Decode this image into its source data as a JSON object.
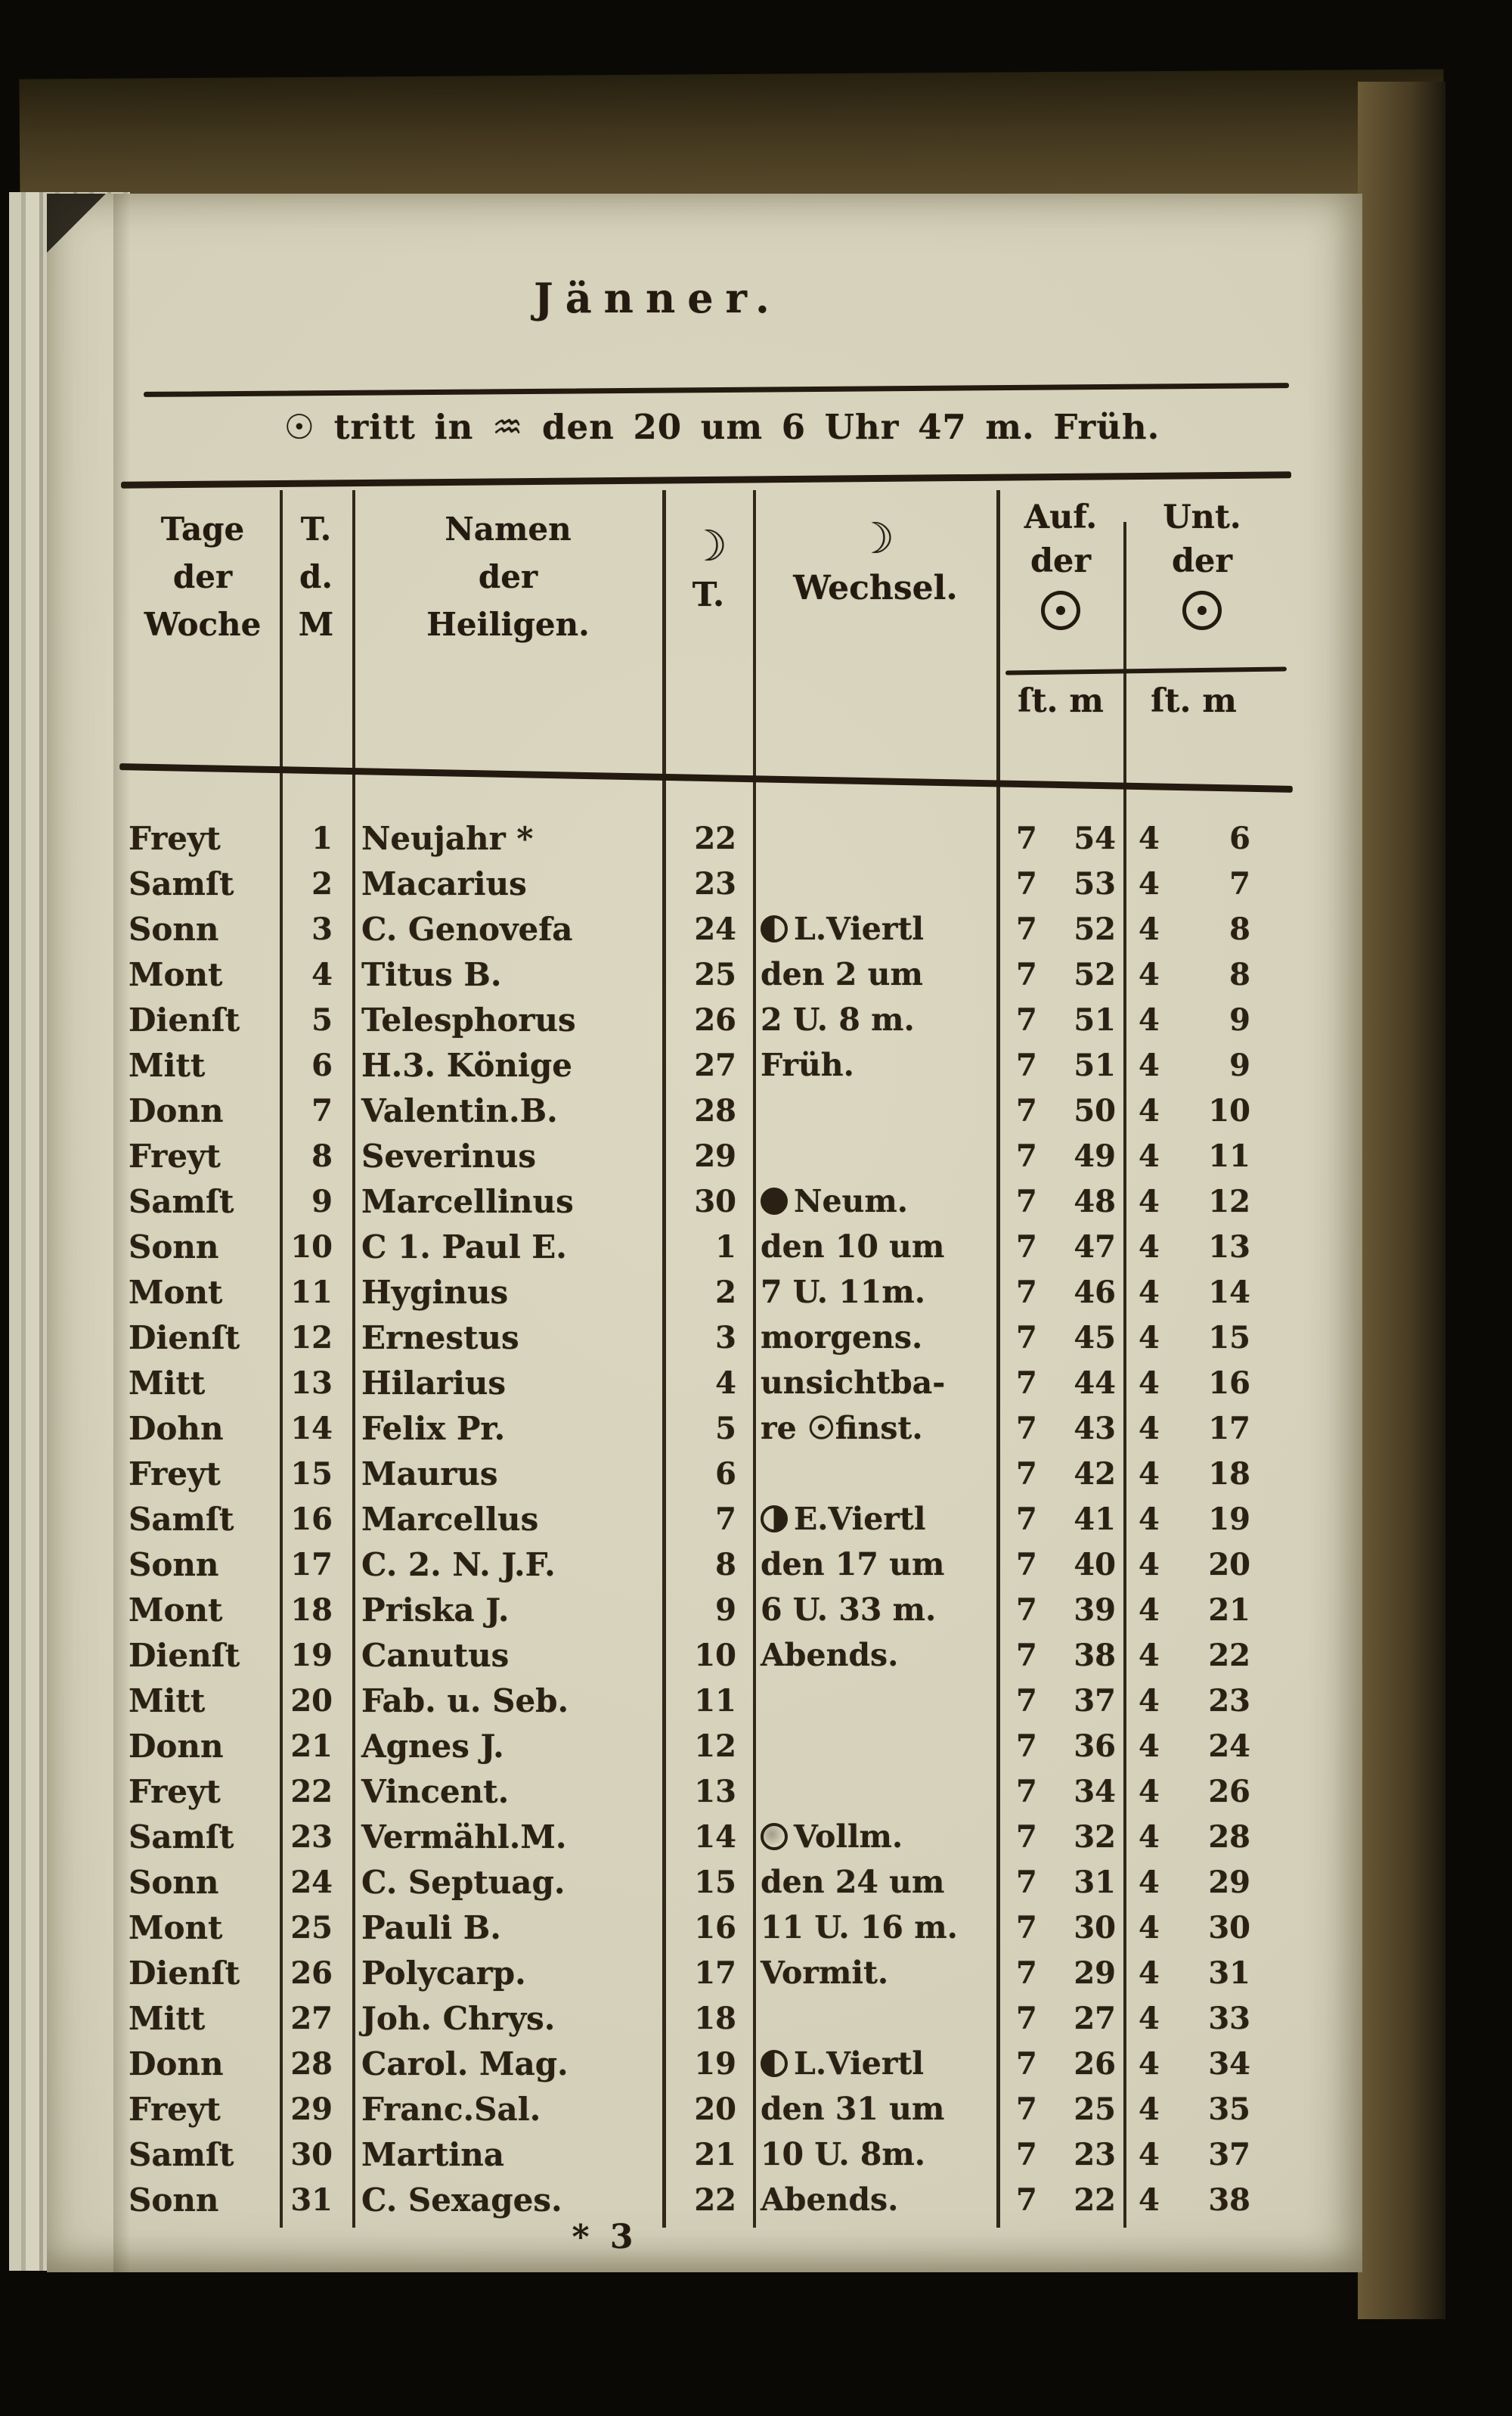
{
  "page": {
    "title": "Jänner.",
    "subtitle": {
      "sun_symbol": "☉",
      "text1": "tritt in",
      "aquarius_symbol": "♒",
      "text2": "den 20 um 6 Uhr 47 m. Früh."
    },
    "footer_mark": "* 3"
  },
  "colors": {
    "paper": "#d7d3bd",
    "ink": "#2a2013",
    "cover": "#55482c",
    "background": "#0b0906"
  },
  "icons": {
    "moon_crescent": "☽",
    "sun": "☉",
    "aquarius": "♒",
    "new_moon": "new",
    "first_quarter": "first",
    "last_quarter": "last",
    "full_moon": "full"
  },
  "table": {
    "headers": {
      "day": [
        "Tage",
        "der",
        "Woche"
      ],
      "date": [
        "T.",
        "d.",
        "M"
      ],
      "saint": [
        "Namen",
        "der",
        "Heiligen."
      ],
      "moon_day": {
        "symbol": "☽",
        "label": "T."
      },
      "wechsel": {
        "symbol": "☽",
        "label": "Wechsel."
      },
      "rise": {
        "line1": "Auf.",
        "line2": "der"
      },
      "set": {
        "line1": "Unt.",
        "line2": "der"
      },
      "units": {
        "rise": "ſt. m",
        "set": "ſt. m"
      }
    },
    "rows": [
      {
        "day": "Freyt",
        "date": "1",
        "saint": "Neujahr *",
        "moon_day": "22",
        "moon": "",
        "wechsel": "",
        "rise": [
          "7",
          "54"
        ],
        "set": [
          "4",
          "6"
        ]
      },
      {
        "day": "Samſt",
        "date": "2",
        "saint": "Macarius",
        "moon_day": "23",
        "moon": "",
        "wechsel": "",
        "rise": [
          "7",
          "53"
        ],
        "set": [
          "4",
          "7"
        ]
      },
      {
        "day": "Sonn",
        "date": "3",
        "saint": "C. Genovefa",
        "moon_day": "24",
        "moon": "last",
        "wechsel": "L.Viertl",
        "rise": [
          "7",
          "52"
        ],
        "set": [
          "4",
          "8"
        ]
      },
      {
        "day": "Mont",
        "date": "4",
        "saint": "Titus B.",
        "moon_day": "25",
        "moon": "",
        "wechsel": "den 2 um",
        "rise": [
          "7",
          "52"
        ],
        "set": [
          "4",
          "8"
        ]
      },
      {
        "day": "Dienſt",
        "date": "5",
        "saint": "Telesphorus",
        "moon_day": "26",
        "moon": "",
        "wechsel": "2 U. 8 m.",
        "rise": [
          "7",
          "51"
        ],
        "set": [
          "4",
          "9"
        ]
      },
      {
        "day": "Mitt",
        "date": "6",
        "saint": "H.3. Könige",
        "moon_day": "27",
        "moon": "",
        "wechsel": "Früh.",
        "rise": [
          "7",
          "51"
        ],
        "set": [
          "4",
          "9"
        ]
      },
      {
        "day": "Donn",
        "date": "7",
        "saint": "Valentin.B.",
        "moon_day": "28",
        "moon": "",
        "wechsel": "",
        "rise": [
          "7",
          "50"
        ],
        "set": [
          "4",
          "10"
        ]
      },
      {
        "day": "Freyt",
        "date": "8",
        "saint": "Severinus",
        "moon_day": "29",
        "moon": "",
        "wechsel": "",
        "rise": [
          "7",
          "49"
        ],
        "set": [
          "4",
          "11"
        ]
      },
      {
        "day": "Samſt",
        "date": "9",
        "saint": "Marcellinus",
        "moon_day": "30",
        "moon": "new",
        "wechsel": "Neum.",
        "rise": [
          "7",
          "48"
        ],
        "set": [
          "4",
          "12"
        ]
      },
      {
        "day": "Sonn",
        "date": "10",
        "saint": "C 1. Paul E.",
        "moon_day": "1",
        "moon": "",
        "wechsel": "den 10 um",
        "rise": [
          "7",
          "47"
        ],
        "set": [
          "4",
          "13"
        ]
      },
      {
        "day": "Mont",
        "date": "11",
        "saint": "Hyginus",
        "moon_day": "2",
        "moon": "",
        "wechsel": "7 U. 11m.",
        "rise": [
          "7",
          "46"
        ],
        "set": [
          "4",
          "14"
        ]
      },
      {
        "day": "Dienſt",
        "date": "12",
        "saint": "Ernestus",
        "moon_day": "3",
        "moon": "",
        "wechsel": "morgens.",
        "rise": [
          "7",
          "45"
        ],
        "set": [
          "4",
          "15"
        ]
      },
      {
        "day": "Mitt",
        "date": "13",
        "saint": "Hilarius",
        "moon_day": "4",
        "moon": "",
        "wechsel": "unsichtba-",
        "rise": [
          "7",
          "44"
        ],
        "set": [
          "4",
          "16"
        ]
      },
      {
        "day": "Dohn",
        "date": "14",
        "saint": "Felix Pr.",
        "moon_day": "5",
        "moon": "",
        "wechsel": "re ☉finst.",
        "rise": [
          "7",
          "43"
        ],
        "set": [
          "4",
          "17"
        ]
      },
      {
        "day": "Freyt",
        "date": "15",
        "saint": "Maurus",
        "moon_day": "6",
        "moon": "",
        "wechsel": "",
        "rise": [
          "7",
          "42"
        ],
        "set": [
          "4",
          "18"
        ]
      },
      {
        "day": "Samſt",
        "date": "16",
        "saint": "Marcellus",
        "moon_day": "7",
        "moon": "first",
        "wechsel": "E.Viertl",
        "rise": [
          "7",
          "41"
        ],
        "set": [
          "4",
          "19"
        ]
      },
      {
        "day": "Sonn",
        "date": "17",
        "saint": "C. 2. N. J.F.",
        "moon_day": "8",
        "moon": "",
        "wechsel": "den 17 um",
        "rise": [
          "7",
          "40"
        ],
        "set": [
          "4",
          "20"
        ]
      },
      {
        "day": "Mont",
        "date": "18",
        "saint": "Priska J.",
        "moon_day": "9",
        "moon": "",
        "wechsel": "6 U. 33 m.",
        "rise": [
          "7",
          "39"
        ],
        "set": [
          "4",
          "21"
        ]
      },
      {
        "day": "Dienſt",
        "date": "19",
        "saint": "Canutus",
        "moon_day": "10",
        "moon": "",
        "wechsel": "Abends.",
        "rise": [
          "7",
          "38"
        ],
        "set": [
          "4",
          "22"
        ]
      },
      {
        "day": "Mitt",
        "date": "20",
        "saint": "Fab. u. Seb.",
        "moon_day": "11",
        "moon": "",
        "wechsel": "",
        "rise": [
          "7",
          "37"
        ],
        "set": [
          "4",
          "23"
        ]
      },
      {
        "day": "Donn",
        "date": "21",
        "saint": "Agnes J.",
        "moon_day": "12",
        "moon": "",
        "wechsel": "",
        "rise": [
          "7",
          "36"
        ],
        "set": [
          "4",
          "24"
        ]
      },
      {
        "day": "Freyt",
        "date": "22",
        "saint": "Vincent.",
        "moon_day": "13",
        "moon": "",
        "wechsel": "",
        "rise": [
          "7",
          "34"
        ],
        "set": [
          "4",
          "26"
        ]
      },
      {
        "day": "Samſt",
        "date": "23",
        "saint": "Vermähl.M.",
        "moon_day": "14",
        "moon": "full",
        "wechsel": "Vollm.",
        "rise": [
          "7",
          "32"
        ],
        "set": [
          "4",
          "28"
        ]
      },
      {
        "day": "Sonn",
        "date": "24",
        "saint": "C. Septuag.",
        "moon_day": "15",
        "moon": "",
        "wechsel": "den 24 um",
        "rise": [
          "7",
          "31"
        ],
        "set": [
          "4",
          "29"
        ]
      },
      {
        "day": "Mont",
        "date": "25",
        "saint": "Pauli B.",
        "moon_day": "16",
        "moon": "",
        "wechsel": "11 U. 16 m.",
        "rise": [
          "7",
          "30"
        ],
        "set": [
          "4",
          "30"
        ]
      },
      {
        "day": "Dienſt",
        "date": "26",
        "saint": "Polycarp.",
        "moon_day": "17",
        "moon": "",
        "wechsel": "Vormit.",
        "rise": [
          "7",
          "29"
        ],
        "set": [
          "4",
          "31"
        ]
      },
      {
        "day": "Mitt",
        "date": "27",
        "saint": "Joh. Chrys.",
        "moon_day": "18",
        "moon": "",
        "wechsel": "",
        "rise": [
          "7",
          "27"
        ],
        "set": [
          "4",
          "33"
        ]
      },
      {
        "day": "Donn",
        "date": "28",
        "saint": "Carol. Mag.",
        "moon_day": "19",
        "moon": "last",
        "wechsel": "L.Viertl",
        "rise": [
          "7",
          "26"
        ],
        "set": [
          "4",
          "34"
        ]
      },
      {
        "day": "Freyt",
        "date": "29",
        "saint": "Franc.Sal.",
        "moon_day": "20",
        "moon": "",
        "wechsel": "den 31 um",
        "rise": [
          "7",
          "25"
        ],
        "set": [
          "4",
          "35"
        ]
      },
      {
        "day": "Samſt",
        "date": "30",
        "saint": "Martina",
        "moon_day": "21",
        "moon": "",
        "wechsel": "10 U. 8m.",
        "rise": [
          "7",
          "23"
        ],
        "set": [
          "4",
          "37"
        ]
      },
      {
        "day": "Sonn",
        "date": "31",
        "saint": "C. Sexages.",
        "moon_day": "22",
        "moon": "",
        "wechsel": "Abends.",
        "rise": [
          "7",
          "22"
        ],
        "set": [
          "4",
          "38"
        ]
      }
    ]
  }
}
